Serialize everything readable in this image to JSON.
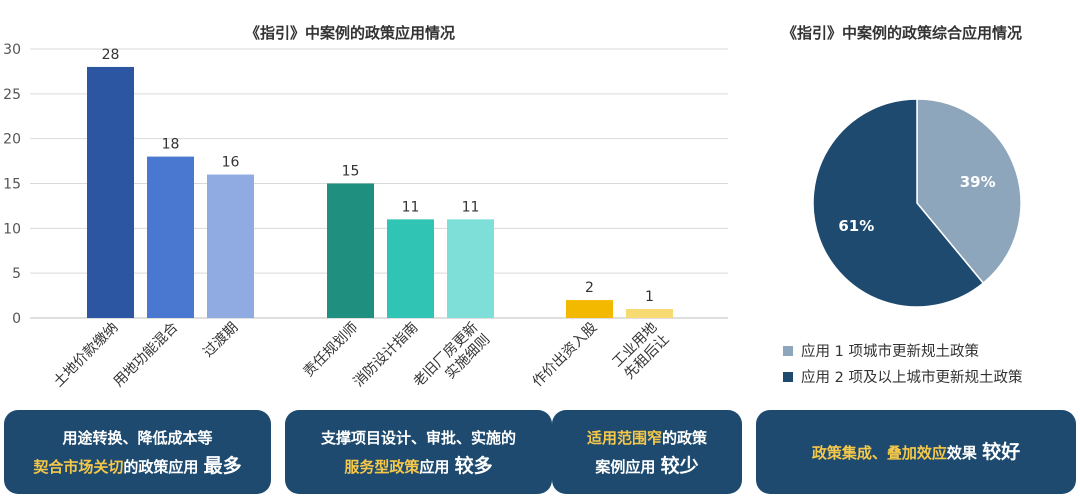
{
  "chart_data": [
    {
      "type": "bar",
      "title": "《指引》中案例的政策应用情况",
      "ylim": [
        0,
        30
      ],
      "yticks": [
        0,
        5,
        10,
        15,
        20,
        25,
        30
      ],
      "grid": true,
      "groups": [
        {
          "bars": [
            {
              "label": "土地价款缴纳",
              "value": 28,
              "color": "#2c56a2"
            },
            {
              "label": "用地功能混合",
              "value": 18,
              "color": "#4a77d0"
            },
            {
              "label": "过渡期",
              "value": 16,
              "color": "#8fabe1"
            }
          ]
        },
        {
          "bars": [
            {
              "label": "责任规划师",
              "value": 15,
              "color": "#1f8f80"
            },
            {
              "label": "消防设计指南",
              "value": 11,
              "color": "#2fc4b4"
            },
            {
              "label": "老旧厂房更新实施细则",
              "label_lines": [
                "老旧厂房更新",
                "实施细则"
              ],
              "value": 11,
              "color": "#7ddfd8"
            }
          ]
        },
        {
          "bars": [
            {
              "label": "作价出资入股",
              "value": 2,
              "color": "#f2b900"
            },
            {
              "label": "工业用地先租后让",
              "label_lines": [
                "工业用地",
                "先租后让"
              ],
              "value": 1,
              "color": "#f8da72"
            }
          ]
        }
      ]
    },
    {
      "type": "pie",
      "title": "《指引》中案例的政策综合应用情况",
      "slices": [
        {
          "label": "应用 1 项城市更新规土政策",
          "value": 39,
          "display": "39%",
          "color": "#8da6bb"
        },
        {
          "label": "应用 2 项及以上城市更新规土政策",
          "value": 61,
          "display": "61%",
          "color": "#1d4a6e"
        }
      ]
    }
  ],
  "cards": [
    {
      "line1": [
        {
          "text": "用途转换、降低成本等",
          "hl": false
        }
      ],
      "line2": [
        {
          "text": "契合市场关切",
          "hl": true
        },
        {
          "text": "的政策应用 ",
          "hl": false
        },
        {
          "text": "最多",
          "hl": false,
          "big": true
        }
      ]
    },
    {
      "line1": [
        {
          "text": "支撑项目设计、审批、实施的",
          "hl": false
        }
      ],
      "line2": [
        {
          "text": "服务型政策",
          "hl": true
        },
        {
          "text": "应用 ",
          "hl": false
        },
        {
          "text": "较多",
          "hl": false,
          "big": true
        }
      ]
    },
    {
      "line1": [
        {
          "text": "适用范围窄",
          "hl": true
        },
        {
          "text": "的政策",
          "hl": false
        }
      ],
      "line2": [
        {
          "text": "案例应用 ",
          "hl": false
        },
        {
          "text": "较少",
          "hl": false,
          "big": true
        }
      ]
    },
    {
      "line1": [
        {
          "text": "政策集成、叠加效应",
          "hl": true
        },
        {
          "text": "效果 ",
          "hl": false
        },
        {
          "text": "较好",
          "hl": false,
          "big": true
        }
      ]
    }
  ]
}
